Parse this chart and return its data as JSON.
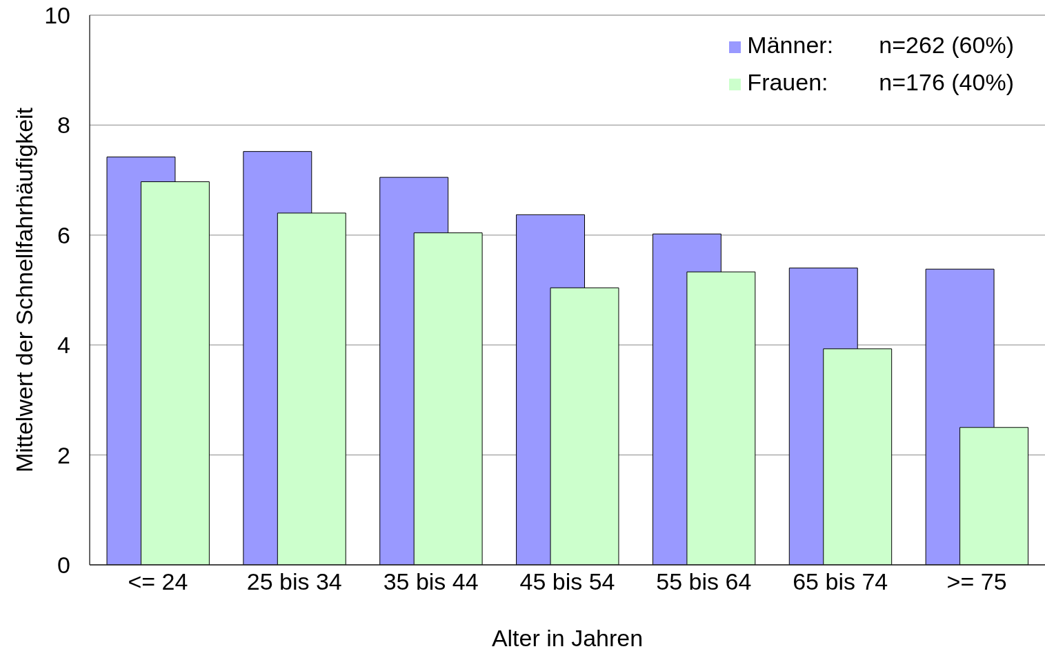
{
  "chart_data": {
    "type": "bar",
    "xlabel": "Alter in Jahren",
    "ylabel": "Mittelwert der Schnellfahrhäufigkeit",
    "categories": [
      "<= 24",
      "25 bis 34",
      "35 bis 44",
      "45 bis 54",
      "55 bis 64",
      "65 bis 74",
      ">= 75"
    ],
    "series": [
      {
        "name": "Männer:\tn=262 (60%)",
        "color": "#9999ff",
        "values": [
          7.42,
          7.52,
          7.05,
          6.37,
          6.02,
          5.4,
          5.38
        ]
      },
      {
        "name": "Frauen:\tn=176 (40%)",
        "color": "#ccffcc",
        "values": [
          6.97,
          6.4,
          6.04,
          5.04,
          5.33,
          3.93,
          2.5
        ]
      }
    ],
    "ylim": [
      0,
      10
    ],
    "yticks": [
      0,
      2,
      4,
      6,
      8,
      10
    ],
    "grid": "y",
    "legend": "top right"
  }
}
